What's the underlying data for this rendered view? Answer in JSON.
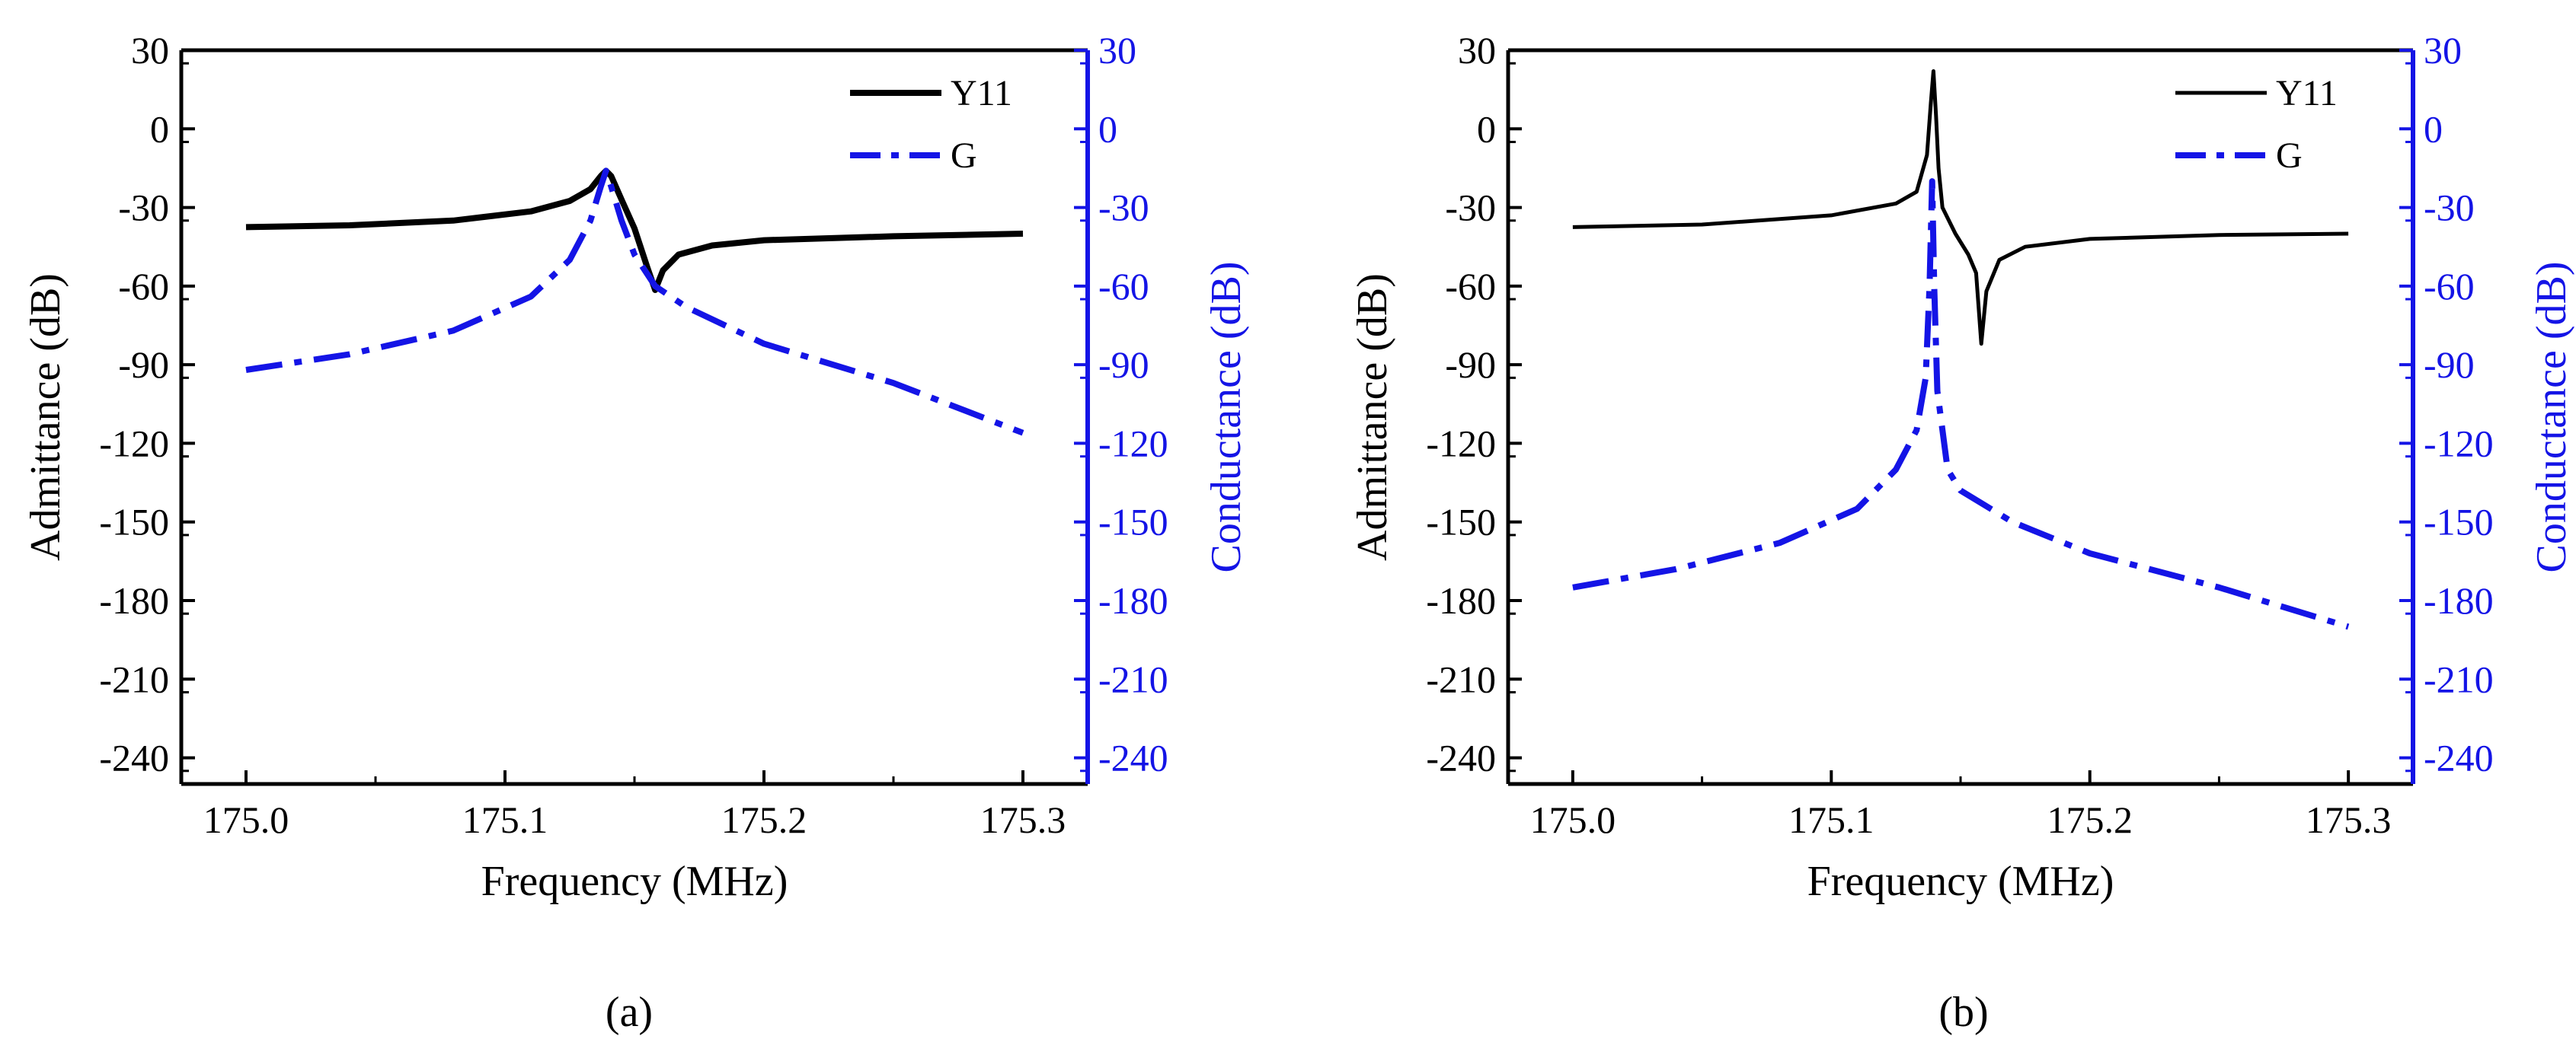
{
  "colors": {
    "y11": "#000000",
    "g": "#1414e6",
    "axis": "#000000",
    "right_axis": "#1414e6"
  },
  "chart_data": [
    {
      "type": "line",
      "caption": "(a)",
      "xlabel": "Frequency (MHz)",
      "ylabel": "Admittance (dB)",
      "y2label": "Conductance (dB)",
      "xlim": [
        174.975,
        175.325
      ],
      "ylim": [
        -250,
        30
      ],
      "y2lim": [
        -250,
        30
      ],
      "xticks": [
        "175.0",
        "175.1",
        "175.2",
        "175.3"
      ],
      "yticks": [
        "30",
        "0",
        "-30",
        "-60",
        "-90",
        "-120",
        "-150",
        "-180",
        "-210",
        "-240"
      ],
      "y2ticks": [
        "30",
        "0",
        "-30",
        "-60",
        "-90",
        "-120",
        "-150",
        "-180",
        "-210",
        "-240"
      ],
      "legend": "top-right",
      "grid": false,
      "series": [
        {
          "name": "Y11",
          "axis": "left",
          "style": "solid",
          "width": "thick",
          "points": [
            [
              175.0,
              -37.5
            ],
            [
              175.04,
              -36.8
            ],
            [
              175.08,
              -35.0
            ],
            [
              175.11,
              -31.5
            ],
            [
              175.125,
              -27.5
            ],
            [
              175.133,
              -23.0
            ],
            [
              175.137,
              -18.0
            ],
            [
              175.139,
              -16.0
            ],
            [
              175.141,
              -18.0
            ],
            [
              175.145,
              -27.0
            ],
            [
              175.15,
              -38.0
            ],
            [
              175.155,
              -53.0
            ],
            [
              175.158,
              -61.5
            ],
            [
              175.161,
              -54.0
            ],
            [
              175.167,
              -48.0
            ],
            [
              175.18,
              -44.5
            ],
            [
              175.2,
              -42.5
            ],
            [
              175.25,
              -41.0
            ],
            [
              175.3,
              -40.0
            ]
          ]
        },
        {
          "name": "G",
          "axis": "right",
          "style": "dashdot",
          "width": "thick",
          "points": [
            [
              175.0,
              -92.0
            ],
            [
              175.04,
              -86.0
            ],
            [
              175.08,
              -77.0
            ],
            [
              175.11,
              -64.0
            ],
            [
              175.125,
              -50.0
            ],
            [
              175.133,
              -35.0
            ],
            [
              175.137,
              -22.0
            ],
            [
              175.139,
              -16.0
            ],
            [
              175.141,
              -22.0
            ],
            [
              175.145,
              -35.0
            ],
            [
              175.15,
              -48.0
            ],
            [
              175.158,
              -60.0
            ],
            [
              175.17,
              -68.0
            ],
            [
              175.2,
              -82.0
            ],
            [
              175.25,
              -97.0
            ],
            [
              175.3,
              -116.0
            ]
          ]
        }
      ]
    },
    {
      "type": "line",
      "caption": "(b)",
      "xlabel": "Frequency (MHz)",
      "ylabel": "Admittance (dB)",
      "y2label": "Conductance (dB)",
      "xlim": [
        174.975,
        175.325
      ],
      "ylim": [
        -250,
        30
      ],
      "y2lim": [
        -250,
        30
      ],
      "xticks": [
        "175.0",
        "175.1",
        "175.2",
        "175.3"
      ],
      "yticks": [
        "30",
        "0",
        "-30",
        "-60",
        "-90",
        "-120",
        "-150",
        "-180",
        "-210",
        "-240"
      ],
      "y2ticks": [
        "30",
        "0",
        "-30",
        "-60",
        "-90",
        "-120",
        "-150",
        "-180",
        "-210",
        "-240"
      ],
      "legend": "top-right",
      "grid": false,
      "series": [
        {
          "name": "Y11",
          "axis": "left",
          "style": "solid",
          "width": "thin",
          "points": [
            [
              175.0,
              -37.5
            ],
            [
              175.05,
              -36.5
            ],
            [
              175.1,
              -33.0
            ],
            [
              175.125,
              -28.5
            ],
            [
              175.133,
              -24.0
            ],
            [
              175.137,
              -10.0
            ],
            [
              175.1385,
              10.0
            ],
            [
              175.1395,
              22.0
            ],
            [
              175.1405,
              5.0
            ],
            [
              175.1415,
              -15.0
            ],
            [
              175.143,
              -30.0
            ],
            [
              175.148,
              -40.0
            ],
            [
              175.153,
              -48.0
            ],
            [
              175.156,
              -55.0
            ],
            [
              175.158,
              -82.0
            ],
            [
              175.16,
              -62.0
            ],
            [
              175.165,
              -50.0
            ],
            [
              175.175,
              -45.0
            ],
            [
              175.2,
              -42.0
            ],
            [
              175.25,
              -40.5
            ],
            [
              175.3,
              -40.0
            ]
          ]
        },
        {
          "name": "G",
          "axis": "right",
          "style": "dashdot",
          "width": "thick",
          "points": [
            [
              175.0,
              -175.0
            ],
            [
              175.04,
              -168.0
            ],
            [
              175.08,
              -158.0
            ],
            [
              175.11,
              -145.0
            ],
            [
              175.125,
              -130.0
            ],
            [
              175.133,
              -115.0
            ],
            [
              175.1365,
              -95.0
            ],
            [
              175.138,
              -60.0
            ],
            [
              175.139,
              -20.0
            ],
            [
              175.1398,
              -60.0
            ],
            [
              175.141,
              -100.0
            ],
            [
              175.145,
              -130.0
            ],
            [
              175.15,
              -138.0
            ],
            [
              175.17,
              -150.0
            ],
            [
              175.2,
              -162.0
            ],
            [
              175.25,
              -175.0
            ],
            [
              175.3,
              -190.0
            ]
          ]
        }
      ]
    }
  ]
}
